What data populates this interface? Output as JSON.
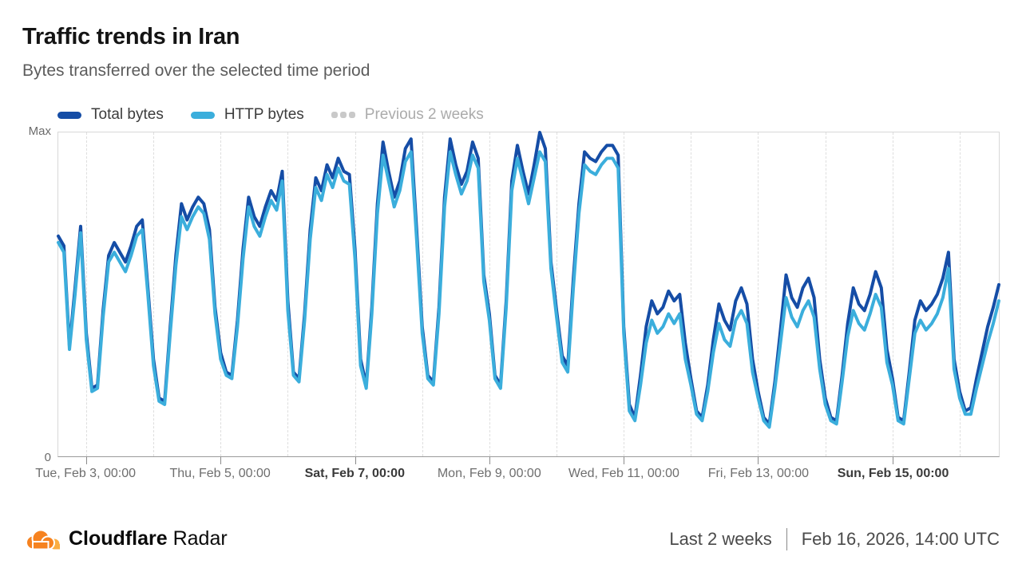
{
  "header": {
    "title": "Traffic trends in Iran",
    "subtitle": "Bytes transferred over the selected time period"
  },
  "legend": [
    {
      "label": "Total bytes",
      "color": "#154DA6",
      "style": "solid",
      "enabled": true
    },
    {
      "label": "HTTP bytes",
      "color": "#3BAEDC",
      "style": "solid",
      "enabled": true
    },
    {
      "label": "Previous 2 weeks",
      "color": "#C9C9C9",
      "style": "dotted",
      "enabled": false
    }
  ],
  "chart_data": {
    "type": "line",
    "title": "Traffic trends in Iran",
    "x_unit": "time (UTC), hourly series from Feb 2 14:00 to Feb 16 14:00, 2026",
    "interval_hours": 2,
    "hours_total": 336,
    "first_day_boundary_offset_hours": 10,
    "day_count": 14,
    "grid": "vertical dashed line at each day boundary",
    "legend_position": "top-left",
    "y_axis": {
      "top_label": "Max",
      "bottom_label": "0",
      "min": 0,
      "max": 100
    },
    "x_ticks": [
      {
        "label": "Tue, Feb 3, 00:00",
        "day_index": 0,
        "bold": false
      },
      {
        "label": "Thu, Feb 5, 00:00",
        "day_index": 2,
        "bold": false
      },
      {
        "label": "Sat, Feb 7, 00:00",
        "day_index": 4,
        "bold": true
      },
      {
        "label": "Mon, Feb 9, 00:00",
        "day_index": 6,
        "bold": false
      },
      {
        "label": "Wed, Feb 11, 00:00",
        "day_index": 8,
        "bold": false
      },
      {
        "label": "Fri, Feb 13, 00:00",
        "day_index": 10,
        "bold": false
      },
      {
        "label": "Sun, Feb 15, 00:00",
        "day_index": 12,
        "bold": true
      }
    ],
    "series": [
      {
        "name": "Total bytes",
        "color": "#154DA6",
        "width": 4,
        "values": [
          68,
          65,
          34,
          52,
          71,
          38,
          21,
          22,
          45,
          62,
          66,
          63,
          60,
          65,
          71,
          73,
          52,
          30,
          18,
          17,
          40,
          62,
          78,
          73,
          77,
          80,
          78,
          70,
          46,
          32,
          26,
          25,
          42,
          64,
          80,
          74,
          71,
          77,
          82,
          79,
          88,
          48,
          26,
          24,
          44,
          70,
          86,
          82,
          90,
          86,
          92,
          88,
          87,
          64,
          30,
          22,
          46,
          78,
          97,
          88,
          80,
          85,
          95,
          98,
          70,
          40,
          25,
          23,
          46,
          80,
          98,
          90,
          84,
          88,
          97,
          92,
          56,
          44,
          25,
          22,
          48,
          85,
          96,
          88,
          81,
          90,
          100,
          95,
          60,
          45,
          31,
          28,
          55,
          78,
          94,
          92,
          91,
          94,
          96,
          96,
          93,
          40,
          16,
          12,
          25,
          40,
          48,
          44,
          46,
          51,
          48,
          50,
          35,
          24,
          14,
          12,
          22,
          36,
          47,
          42,
          39,
          48,
          52,
          47,
          30,
          20,
          12,
          10,
          23,
          39,
          56,
          49,
          46,
          52,
          55,
          49,
          30,
          18,
          12,
          11,
          25,
          41,
          52,
          47,
          45,
          50,
          57,
          52,
          33,
          24,
          12,
          11,
          26,
          42,
          48,
          45,
          47,
          50,
          55,
          63,
          30,
          20,
          14,
          15,
          24,
          32,
          40,
          46,
          53
        ]
      },
      {
        "name": "HTTP bytes",
        "color": "#3BAEDC",
        "width": 4,
        "values": [
          66,
          63,
          33,
          50,
          69,
          36,
          20,
          21,
          43,
          60,
          63,
          60,
          57,
          62,
          68,
          70,
          50,
          28,
          17,
          16,
          38,
          59,
          74,
          70,
          74,
          77,
          75,
          67,
          44,
          30,
          25,
          24,
          40,
          61,
          77,
          71,
          68,
          74,
          79,
          76,
          85,
          45,
          25,
          23,
          42,
          67,
          83,
          79,
          87,
          83,
          89,
          85,
          84,
          61,
          28,
          21,
          44,
          75,
          93,
          85,
          77,
          82,
          91,
          94,
          67,
          38,
          24,
          22,
          44,
          77,
          94,
          87,
          81,
          85,
          93,
          89,
          54,
          42,
          24,
          21,
          46,
          82,
          92,
          85,
          78,
          86,
          94,
          91,
          58,
          43,
          29,
          26,
          52,
          75,
          90,
          88,
          87,
          90,
          92,
          92,
          89,
          38,
          14,
          11,
          22,
          35,
          42,
          38,
          40,
          44,
          41,
          44,
          30,
          22,
          13,
          11,
          20,
          32,
          41,
          36,
          34,
          42,
          45,
          41,
          26,
          18,
          11,
          9,
          21,
          35,
          49,
          43,
          40,
          45,
          48,
          43,
          27,
          16,
          11,
          10,
          23,
          37,
          45,
          41,
          39,
          44,
          50,
          46,
          29,
          22,
          11,
          10,
          24,
          38,
          42,
          39,
          41,
          44,
          49,
          58,
          27,
          18,
          13,
          13,
          21,
          28,
          35,
          41,
          48
        ]
      }
    ]
  },
  "footer": {
    "brand_bold": "Cloudflare",
    "brand_regular": "Radar",
    "range_label": "Last 2 weeks",
    "timestamp": "Feb 16, 2026, 14:00 UTC",
    "logo_primary_color": "#F6821F",
    "logo_secondary_color": "#FBAD41"
  }
}
